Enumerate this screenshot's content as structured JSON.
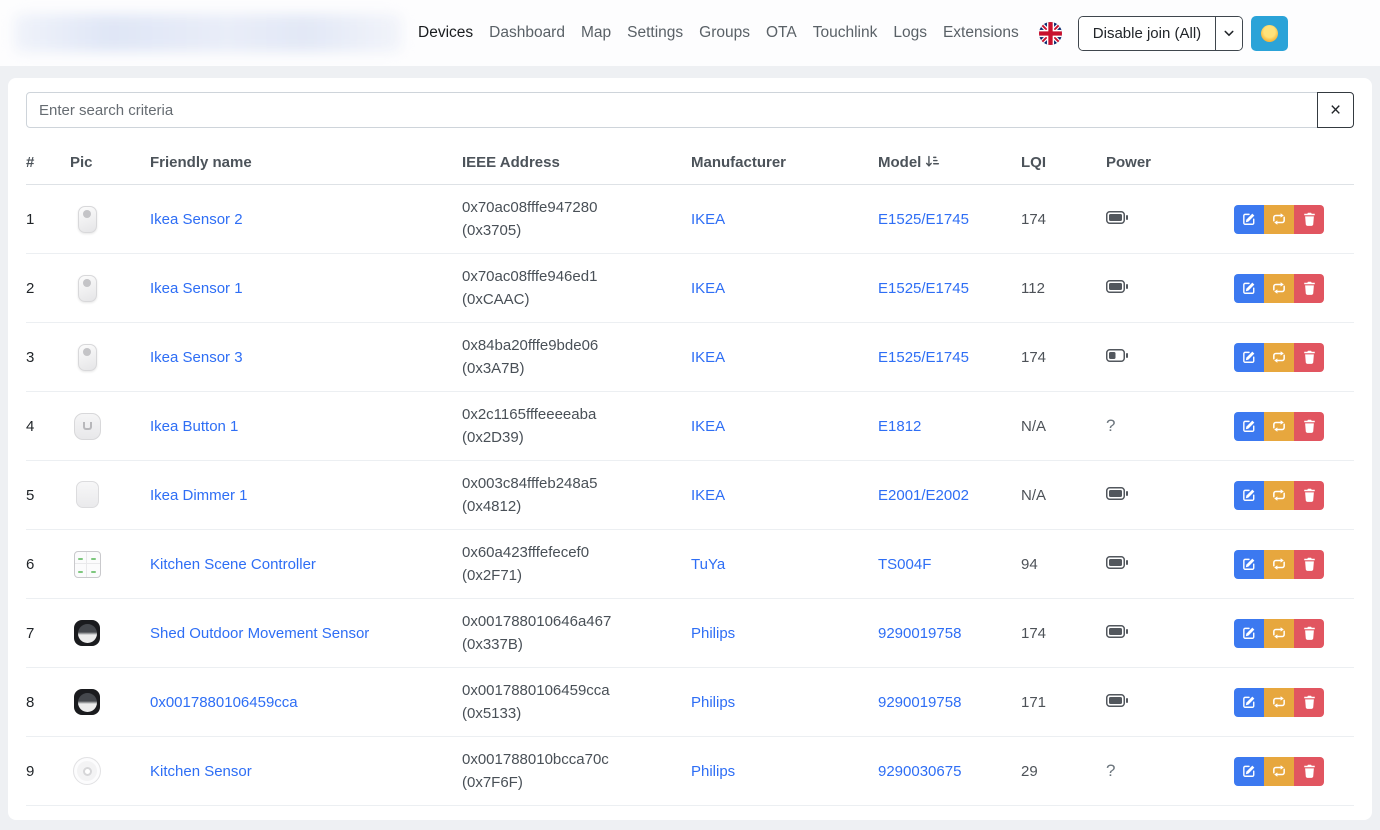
{
  "navbar": {
    "items": [
      {
        "label": "Devices",
        "active": true
      },
      {
        "label": "Dashboard",
        "active": false
      },
      {
        "label": "Map",
        "active": false
      },
      {
        "label": "Settings",
        "active": false
      },
      {
        "label": "Groups",
        "active": false
      },
      {
        "label": "OTA",
        "active": false
      },
      {
        "label": "Touchlink",
        "active": false
      },
      {
        "label": "Logs",
        "active": false
      },
      {
        "label": "Extensions",
        "active": false
      }
    ],
    "language_flag": "uk-flag",
    "join_button_label": "Disable join (All)",
    "theme_icon": "sun-emoji"
  },
  "search": {
    "placeholder": "Enter search criteria",
    "clear_icon": "×"
  },
  "table": {
    "headers": {
      "num": "#",
      "pic": "Pic",
      "friendly_name": "Friendly name",
      "ieee": "IEEE Address",
      "manufacturer": "Manufacturer",
      "model": "Model",
      "lqi": "LQI",
      "power": "Power"
    },
    "sorted_by": "Model",
    "rows": [
      {
        "num": "1",
        "pic": "ikea-motion-sensor",
        "friendly_name": "Ikea Sensor 2",
        "ieee": "0x70ac08fffe947280",
        "short_addr": "(0x3705)",
        "manufacturer": "IKEA",
        "model": "E1525/E1745",
        "lqi": "174",
        "power": "battery-full"
      },
      {
        "num": "2",
        "pic": "ikea-motion-sensor",
        "friendly_name": "Ikea Sensor 1",
        "ieee": "0x70ac08fffe946ed1",
        "short_addr": "(0xCAAC)",
        "manufacturer": "IKEA",
        "model": "E1525/E1745",
        "lqi": "112",
        "power": "battery-full"
      },
      {
        "num": "3",
        "pic": "ikea-motion-sensor",
        "friendly_name": "Ikea Sensor 3",
        "ieee": "0x84ba20fffe9bde06",
        "short_addr": "(0x3A7B)",
        "manufacturer": "IKEA",
        "model": "E1525/E1745",
        "lqi": "174",
        "power": "battery-half"
      },
      {
        "num": "4",
        "pic": "ikea-shortcut-button",
        "friendly_name": "Ikea Button 1",
        "ieee": "0x2c1165fffeeeeaba",
        "short_addr": "(0x2D39)",
        "manufacturer": "IKEA",
        "model": "E1812",
        "lqi": "N/A",
        "power": "unknown"
      },
      {
        "num": "5",
        "pic": "ikea-styrbar-remote",
        "friendly_name": "Ikea Dimmer 1",
        "ieee": "0x003c84fffeb248a5",
        "short_addr": "(0x4812)",
        "manufacturer": "IKEA",
        "model": "E2001/E2002",
        "lqi": "N/A",
        "power": "battery-full"
      },
      {
        "num": "6",
        "pic": "tuya-scene-switch",
        "friendly_name": "Kitchen Scene Controller",
        "ieee": "0x60a423fffefecef0",
        "short_addr": "(0x2F71)",
        "manufacturer": "TuYa",
        "model": "TS004F",
        "lqi": "94",
        "power": "battery-full"
      },
      {
        "num": "7",
        "pic": "philips-outdoor-sensor",
        "friendly_name": "Shed Outdoor Movement Sensor",
        "ieee": "0x001788010646a467",
        "short_addr": "(0x337B)",
        "manufacturer": "Philips",
        "model": "9290019758",
        "lqi": "174",
        "power": "battery-full"
      },
      {
        "num": "8",
        "pic": "philips-outdoor-sensor",
        "friendly_name": "0x0017880106459cca",
        "ieee": "0x0017880106459cca",
        "short_addr": "(0x5133)",
        "manufacturer": "Philips",
        "model": "9290019758",
        "lqi": "171",
        "power": "battery-full"
      },
      {
        "num": "9",
        "pic": "philips-motion-sensor",
        "friendly_name": "Kitchen Sensor",
        "ieee": "0x001788010bcca70c",
        "short_addr": "(0x7F6F)",
        "manufacturer": "Philips",
        "model": "9290030675",
        "lqi": "29",
        "power": "unknown"
      }
    ]
  },
  "colors": {
    "link": "#2e6ef5",
    "edit_button": "#3c79f0",
    "rejoin_button": "#e7a73e",
    "delete_button": "#e15560",
    "theme_button": "#2ba3d8",
    "nav_active": "#191c1f",
    "page_background": "#eef0f3"
  }
}
